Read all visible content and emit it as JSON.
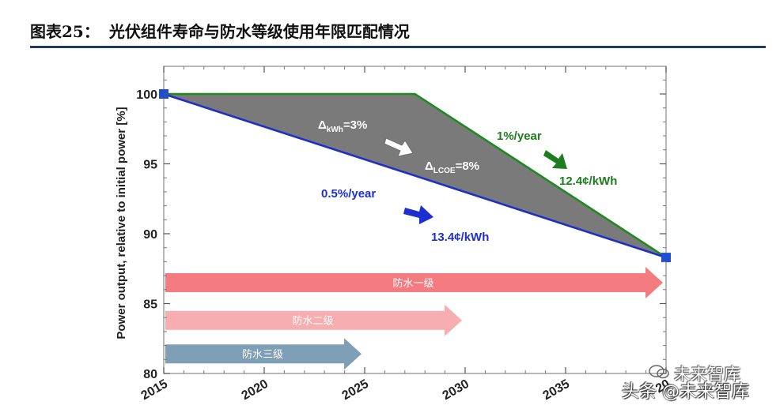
{
  "figure": {
    "number": "图表25：",
    "title": "光伏组件寿命与防水等级使用年限匹配情况"
  },
  "chart_data": {
    "type": "area",
    "ylabel": "Power output, relative to initial power [%]",
    "xlim": [
      2015,
      2040
    ],
    "ylim": [
      80,
      102
    ],
    "x_ticks": [
      "2015",
      "2020",
      "2025",
      "2030",
      "2035",
      "2040"
    ],
    "y_ticks": [
      "80",
      "85",
      "90",
      "95",
      "100"
    ],
    "x_ticks_visible": [
      "2015",
      "2020",
      "2025",
      "2030",
      "2035",
      "20"
    ],
    "series": [
      {
        "name": "1%/year",
        "color": "#1f8a1f",
        "x": [
          2015,
          2027.5,
          2040
        ],
        "y": [
          100,
          100,
          88.3
        ]
      },
      {
        "name": "0.5%/year",
        "color": "#1f2fc8",
        "x": [
          2015,
          2040
        ],
        "y": [
          100,
          88.3
        ]
      }
    ],
    "fill_color": "#7a7a7a",
    "markers": [
      {
        "x": 2015,
        "y": 100,
        "color": "#1f4fd0"
      },
      {
        "x": 2040,
        "y": 88.3,
        "color": "#1f4fd0"
      }
    ],
    "annotations": {
      "delta_kwh_prefix": "Δ",
      "delta_kwh_sub": "kWh",
      "delta_kwh_suffix": "=3%",
      "delta_lcoe_prefix": "Δ",
      "delta_lcoe_sub": "LCOE",
      "delta_lcoe_suffix": "=8%",
      "rate_green": "1%/year",
      "cost_green": "12.4¢/kWh",
      "rate_blue": "0.5%/year",
      "cost_blue": "13.4¢/kWh"
    },
    "bars": [
      {
        "label": "防水一级",
        "start": 2015,
        "end": 2040,
        "y": 86.5,
        "color": "#f47b7f"
      },
      {
        "label": "防水二级",
        "start": 2015,
        "end": 2030,
        "y": 83.8,
        "color": "#f7aeb0"
      },
      {
        "label": "防水三级",
        "start": 2015,
        "end": 2025,
        "y": 81.4,
        "color": "#7f9fb6"
      }
    ],
    "grid": false
  },
  "watermark": {
    "top": "未来智库",
    "bottom": "头条 @未来智库"
  }
}
